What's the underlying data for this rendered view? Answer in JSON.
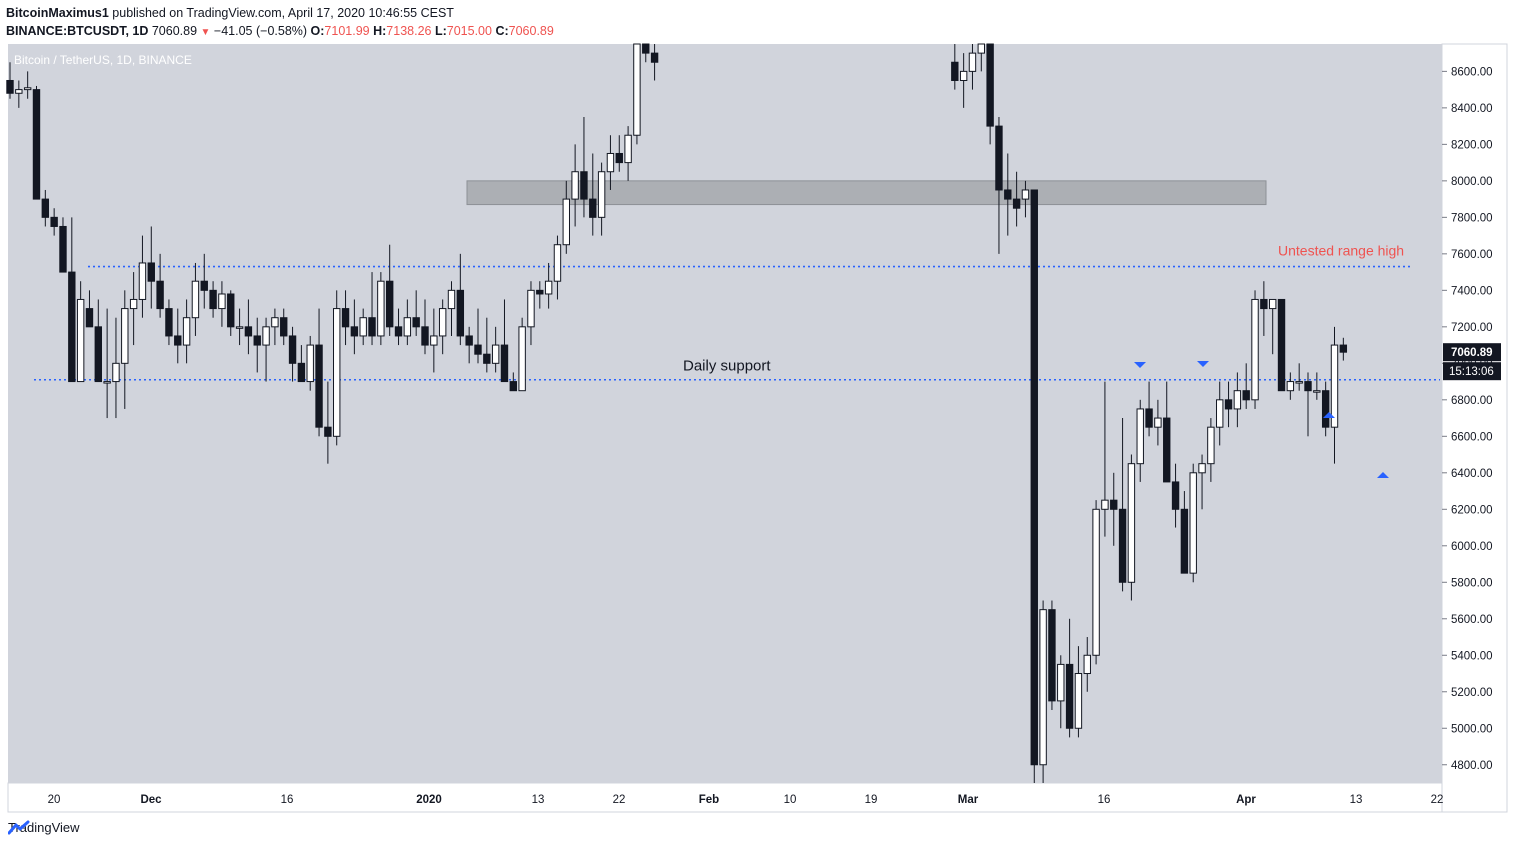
{
  "header": {
    "author": "BitcoinMaximus1",
    "published_text": " published on TradingView.com, April 17, 2020 10:46:55 CEST",
    "symbol": "BINANCE:BTCUSDT, 1D",
    "last": "7060.89",
    "change": "−41.05 (−0.58%)",
    "o_label": "O:",
    "o_val": "7101.99",
    "h_label": "H:",
    "h_val": "7138.26",
    "l_label": "L:",
    "l_val": "7015.00",
    "c_label": "C:",
    "c_val": "7060.89"
  },
  "chart_data": {
    "type": "candlestick",
    "title": "Bitcoin / TetherUS, 1D, BINANCE",
    "ylim": [
      4700,
      8750
    ],
    "y_ticks": [
      4800,
      5000,
      5200,
      5400,
      5600,
      5800,
      6000,
      6200,
      6400,
      6600,
      6800,
      7000,
      7200,
      7400,
      7600,
      7800,
      8000,
      8200,
      8400,
      8600
    ],
    "x_ticks": [
      {
        "label": "20",
        "index": 0
      },
      {
        "label": "Dec",
        "index": 11
      },
      {
        "label": "16",
        "index": 26
      },
      {
        "label": "2020",
        "index": 42
      },
      {
        "label": "13",
        "index": 54
      },
      {
        "label": "22",
        "index": 63
      },
      {
        "label": "Feb",
        "index": 73
      },
      {
        "label": "10",
        "index": 82
      },
      {
        "label": "19",
        "index": 91
      },
      {
        "label": "Mar",
        "index": 101
      },
      {
        "label": "16",
        "index": 116
      },
      {
        "label": "Apr",
        "index": 132
      },
      {
        "label": "13",
        "index": 144
      },
      {
        "label": "22",
        "index": 153
      }
    ],
    "candles": [
      [
        8550,
        8650,
        8450,
        8480
      ],
      [
        8480,
        8550,
        8400,
        8500
      ],
      [
        8500,
        8600,
        8450,
        8510
      ],
      [
        8500,
        8520,
        7900,
        7900
      ],
      [
        7900,
        7950,
        7750,
        7800
      ],
      [
        7800,
        7850,
        7700,
        7750
      ],
      [
        7750,
        7800,
        7500,
        7500
      ],
      [
        7500,
        7800,
        6900,
        6900
      ],
      [
        6900,
        7450,
        6900,
        7350
      ],
      [
        7300,
        7400,
        7200,
        7200
      ],
      [
        7200,
        7350,
        6900,
        6900
      ],
      [
        6900,
        7300,
        6700,
        6900
      ],
      [
        6900,
        7250,
        6700,
        7000
      ],
      [
        7000,
        7400,
        6750,
        7300
      ],
      [
        7300,
        7500,
        7100,
        7350
      ],
      [
        7350,
        7700,
        7250,
        7550
      ],
      [
        7550,
        7750,
        7300,
        7450
      ],
      [
        7450,
        7600,
        7250,
        7300
      ],
      [
        7300,
        7350,
        7100,
        7150
      ],
      [
        7150,
        7300,
        7000,
        7100
      ],
      [
        7100,
        7350,
        7000,
        7250
      ],
      [
        7250,
        7550,
        7150,
        7450
      ],
      [
        7450,
        7600,
        7300,
        7400
      ],
      [
        7400,
        7450,
        7250,
        7300
      ],
      [
        7300,
        7450,
        7200,
        7380
      ],
      [
        7380,
        7400,
        7150,
        7200
      ],
      [
        7200,
        7300,
        7100,
        7200
      ],
      [
        7200,
        7350,
        7050,
        7150
      ],
      [
        7150,
        7250,
        6950,
        7100
      ],
      [
        7100,
        7250,
        6900,
        7200
      ],
      [
        7200,
        7300,
        7100,
        7250
      ],
      [
        7250,
        7300,
        7100,
        7150
      ],
      [
        7150,
        7200,
        6900,
        7000
      ],
      [
        7000,
        7100,
        6900,
        6900
      ],
      [
        6900,
        7150,
        6850,
        7100
      ],
      [
        7100,
        7300,
        6600,
        6650
      ],
      [
        6650,
        6900,
        6450,
        6600
      ],
      [
        6600,
        7400,
        6550,
        7300
      ],
      [
        7300,
        7400,
        7100,
        7200
      ],
      [
        7200,
        7350,
        7050,
        7150
      ],
      [
        7150,
        7300,
        7100,
        7250
      ],
      [
        7250,
        7500,
        7100,
        7150
      ],
      [
        7150,
        7500,
        7100,
        7450
      ],
      [
        7450,
        7650,
        7150,
        7200
      ],
      [
        7200,
        7300,
        7100,
        7150
      ],
      [
        7150,
        7350,
        7100,
        7250
      ],
      [
        7250,
        7400,
        7150,
        7200
      ],
      [
        7200,
        7350,
        7050,
        7100
      ],
      [
        7100,
        7300,
        6950,
        7150
      ],
      [
        7150,
        7350,
        7050,
        7300
      ],
      [
        7300,
        7450,
        7150,
        7400
      ],
      [
        7400,
        7600,
        7100,
        7150
      ],
      [
        7150,
        7200,
        7000,
        7100
      ],
      [
        7100,
        7300,
        7000,
        7050
      ],
      [
        7050,
        7250,
        6950,
        7000
      ],
      [
        7000,
        7200,
        6950,
        7100
      ],
      [
        7100,
        7350,
        6900,
        6900
      ],
      [
        6900,
        6950,
        6850,
        6850
      ],
      [
        6850,
        7250,
        6850,
        7200
      ],
      [
        7200,
        7450,
        7100,
        7400
      ],
      [
        7400,
        7450,
        7300,
        7380
      ],
      [
        7380,
        7550,
        7300,
        7450
      ],
      [
        7450,
        7700,
        7350,
        7650
      ],
      [
        7650,
        8000,
        7600,
        7900
      ],
      [
        7900,
        8200,
        7750,
        8050
      ],
      [
        8050,
        8350,
        7800,
        7900
      ],
      [
        7900,
        8150,
        7700,
        7800
      ],
      [
        7800,
        8100,
        7700,
        8050
      ],
      [
        8050,
        8250,
        7950,
        8150
      ],
      [
        8150,
        8250,
        8050,
        8100
      ],
      [
        8100,
        8300,
        8000,
        8250
      ],
      [
        8250,
        8900,
        8200,
        8800
      ],
      [
        8800,
        8950,
        8650,
        8700
      ],
      [
        8700,
        8800,
        8550,
        8650
      ]
    ],
    "candles_gap_note": "",
    "candles_mar": [
      [
        8650,
        8800,
        8500,
        8550
      ],
      [
        8550,
        8700,
        8400,
        8600
      ],
      [
        8600,
        8800,
        8500,
        8700
      ],
      [
        8700,
        8900,
        8600,
        8750
      ],
      [
        8750,
        8800,
        8200,
        8300
      ],
      [
        8300,
        8350,
        7600,
        7950
      ],
      [
        7950,
        8150,
        7700,
        7900
      ],
      [
        7900,
        8050,
        7750,
        7850
      ],
      [
        7900,
        8000,
        7800,
        7950
      ],
      [
        7950,
        7950,
        4700,
        4800
      ],
      [
        4800,
        5700,
        4700,
        5650
      ],
      [
        5650,
        5700,
        5100,
        5150
      ],
      [
        5150,
        5400,
        5000,
        5350
      ],
      [
        5350,
        5600,
        4950,
        5000
      ],
      [
        5000,
        5450,
        4950,
        5300
      ],
      [
        5300,
        5500,
        5200,
        5400
      ],
      [
        5400,
        6250,
        5350,
        6200
      ],
      [
        6200,
        6900,
        6050,
        6250
      ],
      [
        6250,
        6400,
        6000,
        6200
      ],
      [
        6200,
        6700,
        5750,
        5800
      ],
      [
        5800,
        6500,
        5700,
        6450
      ],
      [
        6450,
        6800,
        6350,
        6750
      ],
      [
        6750,
        6900,
        6600,
        6650
      ],
      [
        6650,
        6800,
        6550,
        6700
      ],
      [
        6700,
        6900,
        6350,
        6350
      ],
      [
        6350,
        6450,
        6100,
        6200
      ],
      [
        6200,
        6300,
        5850,
        5850
      ],
      [
        5850,
        6450,
        5800,
        6400
      ],
      [
        6400,
        6500,
        6200,
        6450
      ],
      [
        6450,
        6700,
        6350,
        6650
      ],
      [
        6650,
        6900,
        6550,
        6800
      ],
      [
        6800,
        6900,
        6650,
        6750
      ],
      [
        6750,
        6950,
        6650,
        6850
      ],
      [
        6850,
        7000,
        6750,
        6800
      ],
      [
        6800,
        7400,
        6750,
        7350
      ],
      [
        7350,
        7450,
        7150,
        7300
      ],
      [
        7300,
        7350,
        7050,
        7350
      ],
      [
        7350,
        7350,
        6850,
        6850
      ],
      [
        6850,
        6950,
        6800,
        6900
      ],
      [
        6900,
        7000,
        6850,
        6900
      ],
      [
        6900,
        6950,
        6600,
        6850
      ],
      [
        6850,
        6950,
        6800,
        6850
      ],
      [
        6850,
        6900,
        6600,
        6650
      ],
      [
        6650,
        7200,
        6450,
        7100
      ],
      [
        7100,
        7140,
        7015,
        7061
      ]
    ],
    "last_price_label": "7060.89",
    "countdown_label": "15:13:06",
    "annotations": {
      "untested_range_high": {
        "text": "Untested range high",
        "price": 7530
      },
      "daily_support": {
        "text": "Daily support",
        "price": 6910
      },
      "resistance_zone": {
        "top": 8000,
        "bottom": 7870
      }
    }
  },
  "footer": {
    "brand": "TradingView"
  },
  "colors": {
    "bg": "#d1d4dc",
    "bull": "#ffffff",
    "bear": "#131722",
    "dotted": "#2962ff",
    "red_text": "#ef5350",
    "zone": "#a6a8ad"
  }
}
